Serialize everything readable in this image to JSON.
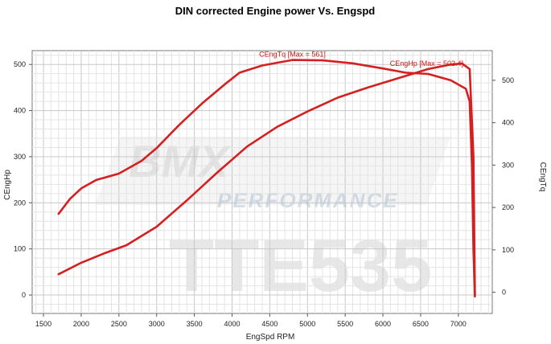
{
  "chart_data": {
    "type": "line",
    "title": "DIN corrected Engine power Vs. Engspd",
    "xlabel": "EngSpd RPM",
    "ylabel_left": "CEngHp",
    "ylabel_right": "CEngTq",
    "xlim": [
      1350,
      7450
    ],
    "ylim_left": [
      -40,
      530
    ],
    "ylim_right": [
      -50,
      570
    ],
    "x_ticks": [
      1500,
      2000,
      2500,
      3000,
      3500,
      4000,
      4500,
      5000,
      5500,
      6000,
      6500,
      7000
    ],
    "y_ticks_left": [
      0,
      100,
      200,
      300,
      400,
      500
    ],
    "y_ticks_right": [
      0,
      100,
      200,
      300,
      400,
      500
    ],
    "grid": true,
    "series": [
      {
        "name": "CEngHp",
        "axis": "left",
        "color": "#d42020",
        "x": [
          1700,
          2000,
          2300,
          2600,
          3000,
          3400,
          3800,
          4200,
          4600,
          5000,
          5400,
          5800,
          6200,
          6600,
          6900,
          7050,
          7150,
          7200,
          7220
        ],
        "y": [
          45,
          70,
          90,
          108,
          148,
          205,
          265,
          322,
          365,
          398,
          428,
          450,
          470,
          490,
          500,
          502,
          490,
          300,
          0
        ]
      },
      {
        "name": "CEngTq",
        "axis": "right",
        "color": "#d42020",
        "x": [
          1700,
          1850,
          2000,
          2200,
          2500,
          2800,
          3000,
          3300,
          3600,
          3900,
          4100,
          4400,
          4800,
          5200,
          5600,
          6000,
          6300,
          6600,
          6900,
          7100,
          7150,
          7180,
          7200,
          7220
        ],
        "y": [
          185,
          220,
          245,
          265,
          280,
          310,
          340,
          395,
          445,
          490,
          518,
          535,
          548,
          547,
          540,
          528,
          518,
          515,
          500,
          480,
          450,
          300,
          100,
          -10
        ]
      }
    ],
    "annotations": [
      {
        "text": "CEngTq [Max = 561]",
        "series": "CEngTq"
      },
      {
        "text": "CEngHp [Max = 502.4]",
        "series": "CEngHp"
      }
    ],
    "watermark": {
      "logo_text": "BMX",
      "sub_text": "PERFORMANCE",
      "code_text": "TTE535"
    }
  }
}
